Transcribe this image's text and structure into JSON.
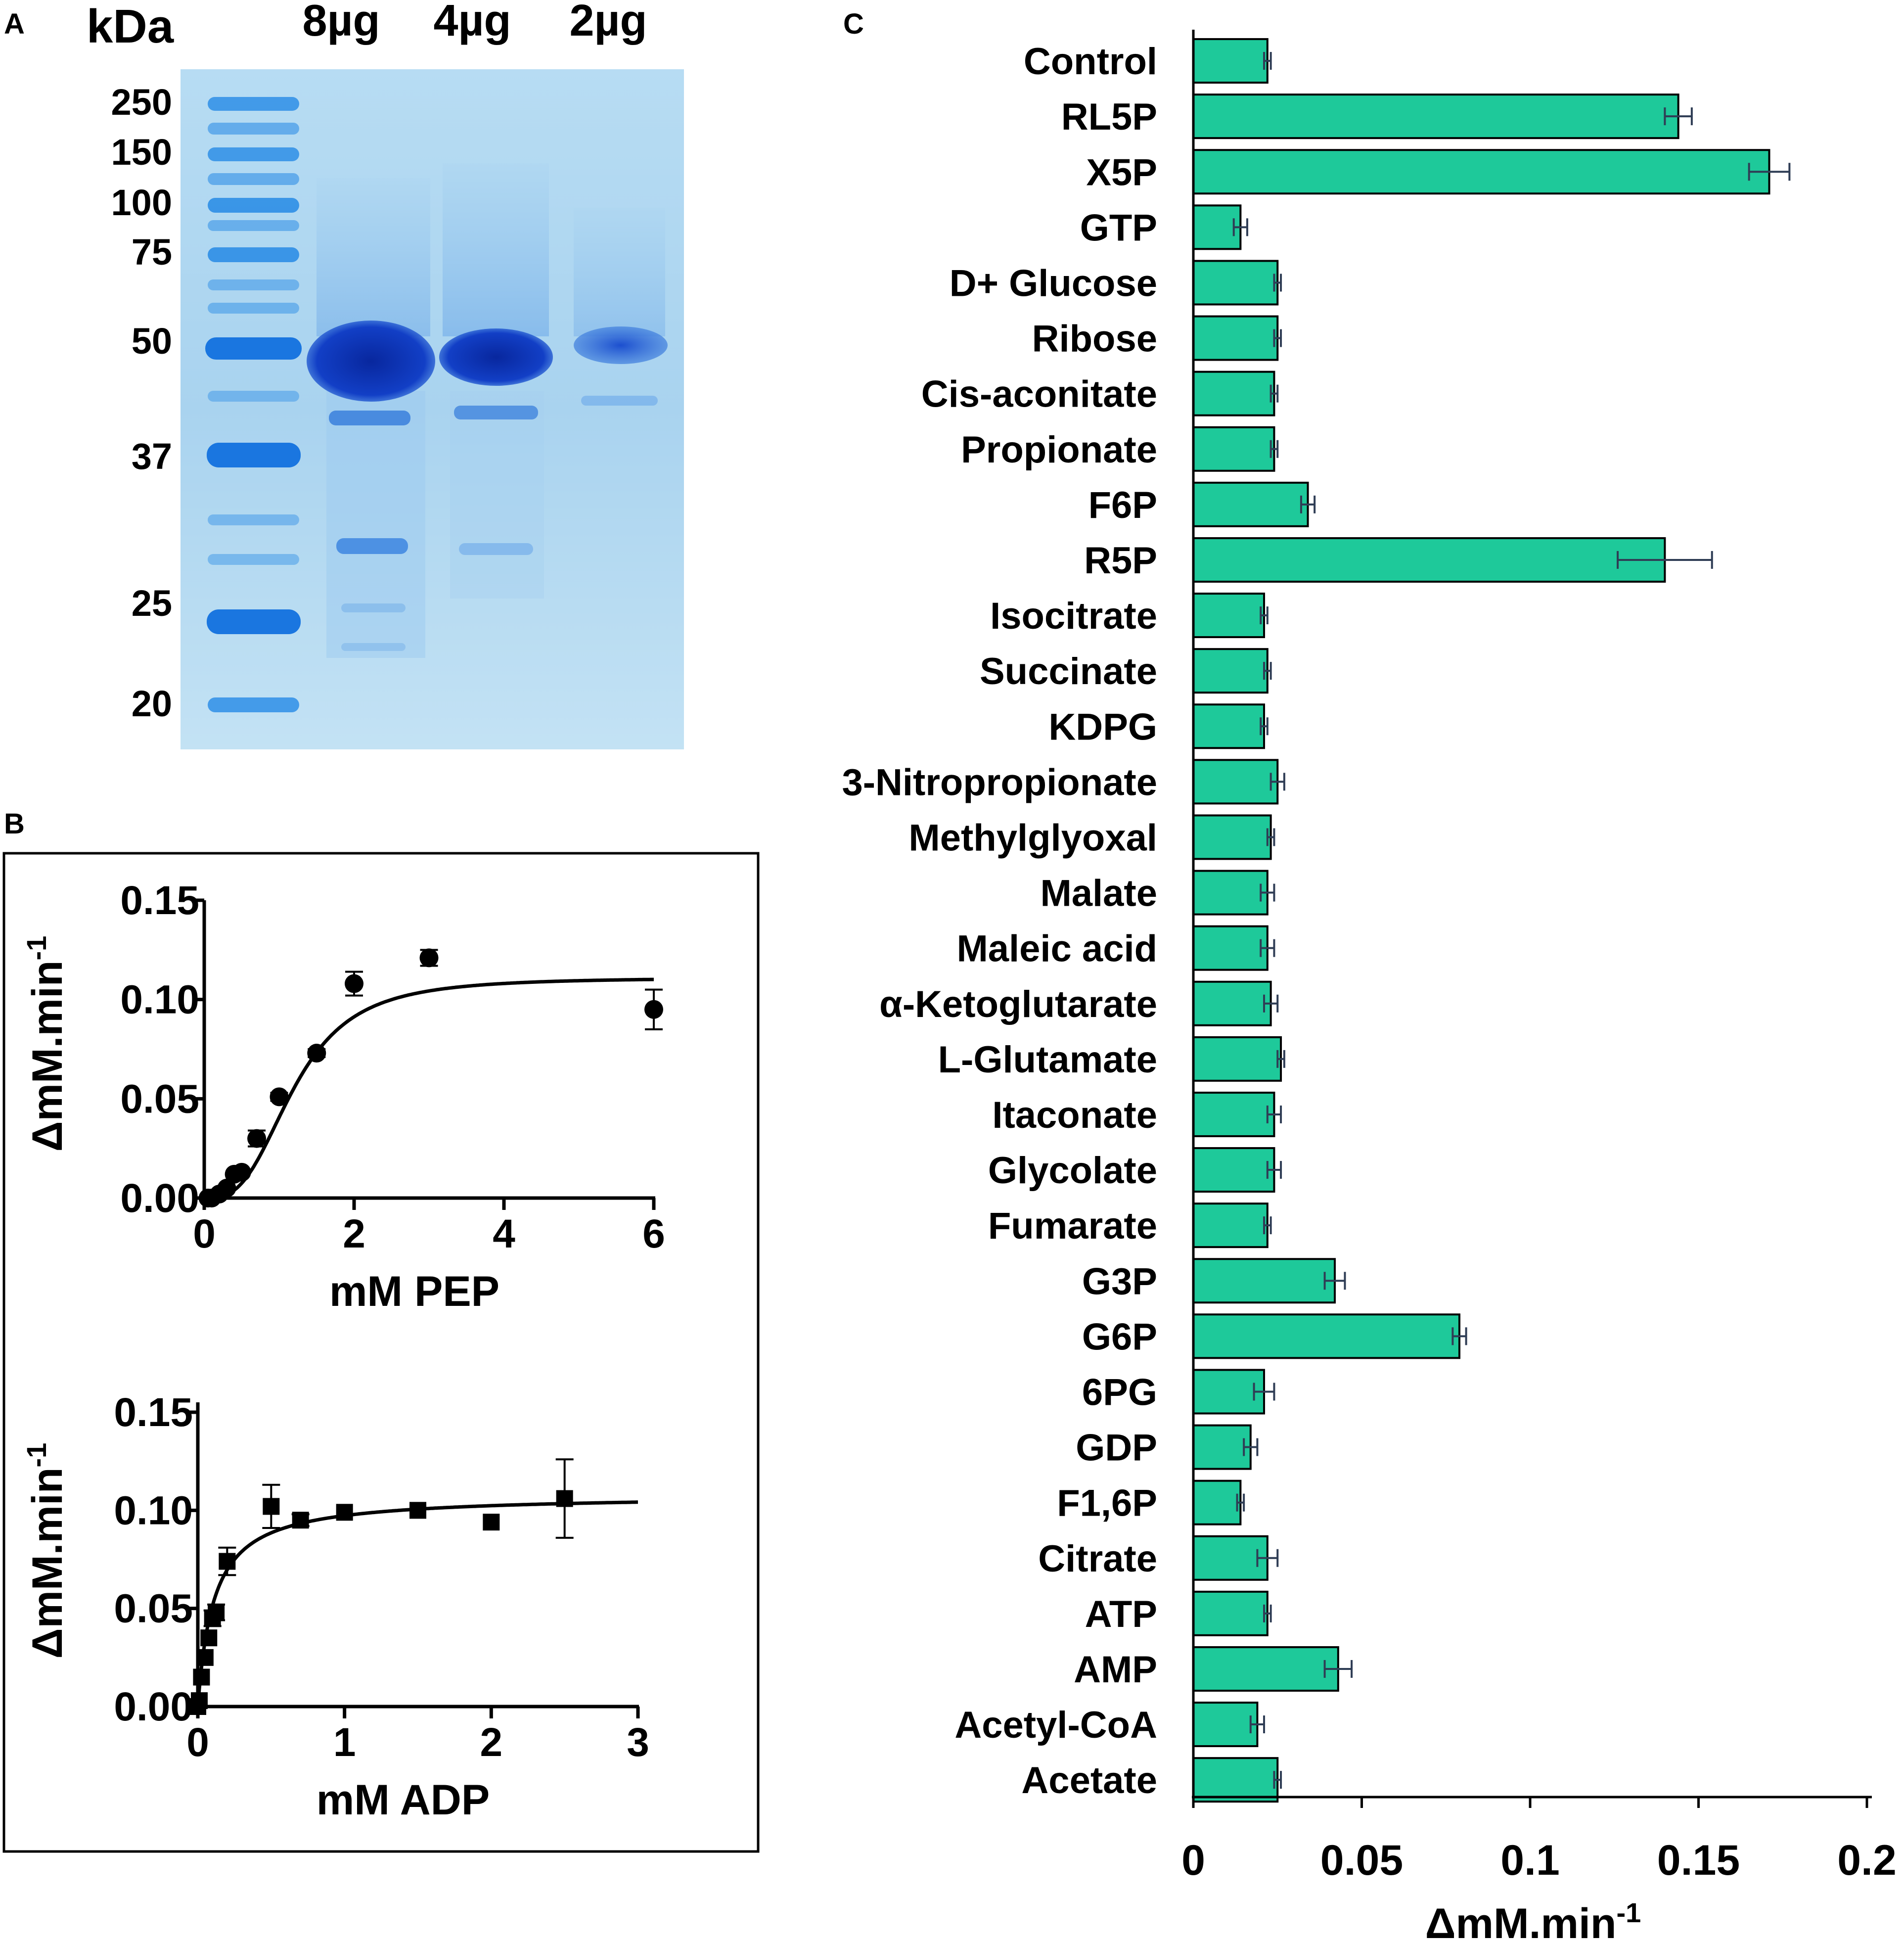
{
  "panels": {
    "a": "A",
    "b": "B",
    "c": "C"
  },
  "gel": {
    "unit_label": "kDa",
    "lanes": [
      "8µg",
      "4µg",
      "2µg"
    ],
    "markers": [
      "250",
      "150",
      "100",
      "75",
      "50",
      "37",
      "25",
      "20"
    ]
  },
  "chart_data": [
    {
      "type": "scatter",
      "title": "",
      "xlabel": "mM PEP",
      "ylabel": "ΔmM.min",
      "ylabel_superscript": "-1",
      "xlim": [
        0,
        6
      ],
      "ylim": [
        0,
        0.15
      ],
      "xticks": [
        "0",
        "2",
        "4",
        "6"
      ],
      "yticks": [
        "0.00",
        "0.05",
        "0.10",
        "0.15"
      ],
      "marker": "circle",
      "points": [
        {
          "x": 0.05,
          "y": 0.0
        },
        {
          "x": 0.1,
          "y": 0.0
        },
        {
          "x": 0.2,
          "y": 0.002
        },
        {
          "x": 0.3,
          "y": 0.005
        },
        {
          "x": 0.4,
          "y": 0.012
        },
        {
          "x": 0.5,
          "y": 0.013
        },
        {
          "x": 0.7,
          "y": 0.03
        },
        {
          "x": 1.0,
          "y": 0.051
        },
        {
          "x": 1.5,
          "y": 0.073
        },
        {
          "x": 2.0,
          "y": 0.108
        },
        {
          "x": 3.0,
          "y": 0.121
        },
        {
          "x": 6.0,
          "y": 0.095
        }
      ],
      "errors": [
        0,
        0,
        0,
        0,
        0,
        0,
        0.004,
        0.002,
        0.002,
        0.006,
        0.004,
        0.01
      ],
      "fit": {
        "model": "hill",
        "vmax": 0.111,
        "k": 1.2,
        "n": 3
      }
    },
    {
      "type": "scatter",
      "title": "",
      "xlabel": "mM ADP",
      "ylabel": "ΔmM.min",
      "ylabel_superscript": "-1",
      "xlim": [
        0,
        3
      ],
      "ylim": [
        0,
        0.15
      ],
      "xticks": [
        "0",
        "1",
        "2",
        "3"
      ],
      "yticks": [
        "0.00",
        "0.05",
        "0.10",
        "0.15"
      ],
      "marker": "square",
      "points": [
        {
          "x": 0.0,
          "y": 0.0
        },
        {
          "x": 0.01,
          "y": 0.003
        },
        {
          "x": 0.025,
          "y": 0.015
        },
        {
          "x": 0.05,
          "y": 0.025
        },
        {
          "x": 0.075,
          "y": 0.035
        },
        {
          "x": 0.1,
          "y": 0.045
        },
        {
          "x": 0.125,
          "y": 0.048
        },
        {
          "x": 0.2,
          "y": 0.074
        },
        {
          "x": 0.5,
          "y": 0.102
        },
        {
          "x": 0.7,
          "y": 0.095
        },
        {
          "x": 1.0,
          "y": 0.099
        },
        {
          "x": 1.5,
          "y": 0.1
        },
        {
          "x": 2.0,
          "y": 0.094
        },
        {
          "x": 2.5,
          "y": 0.106
        }
      ],
      "errors": [
        0,
        0,
        0,
        0,
        0,
        0.004,
        0.004,
        0.007,
        0.011,
        0.003,
        0,
        0,
        0,
        0.02
      ],
      "fit": {
        "model": "michaelis-menten",
        "vmax": 0.108,
        "k": 0.11
      }
    },
    {
      "type": "bar",
      "orientation": "horizontal",
      "title": "",
      "xlabel": "ΔmM.min",
      "xlabel_superscript": "-1",
      "ylabel": "",
      "xlim": [
        0,
        0.2
      ],
      "xticks": [
        "0",
        "0.05",
        "0.1",
        "0.15",
        "0.2"
      ],
      "bar_color": "#1ec99a",
      "categories": [
        "Control",
        "RL5P",
        "X5P",
        "GTP",
        "D+ Glucose",
        "Ribose",
        "Cis-aconitate",
        "Propionate",
        "F6P",
        "R5P",
        "Isocitrate",
        "Succinate",
        "KDPG",
        "3-Nitropropionate",
        "Methylglyoxal",
        "Malate",
        "Maleic acid",
        "α-Ketoglutarate",
        "L-Glutamate",
        "Itaconate",
        "Glycolate",
        "Fumarate",
        "G3P",
        "G6P",
        "6PG",
        "GDP",
        "F1,6P",
        "Citrate",
        "ATP",
        "AMP",
        "Acetyl-CoA",
        "Acetate"
      ],
      "values": [
        0.022,
        0.144,
        0.171,
        0.014,
        0.025,
        0.025,
        0.024,
        0.024,
        0.034,
        0.14,
        0.021,
        0.022,
        0.021,
        0.025,
        0.023,
        0.022,
        0.022,
        0.023,
        0.026,
        0.024,
        0.024,
        0.022,
        0.042,
        0.079,
        0.021,
        0.017,
        0.014,
        0.022,
        0.022,
        0.043,
        0.019,
        0.025
      ],
      "errors": [
        0.001,
        0.004,
        0.006,
        0.002,
        0.001,
        0.001,
        0.001,
        0.001,
        0.002,
        0.014,
        0.001,
        0.001,
        0.001,
        0.002,
        0.001,
        0.002,
        0.002,
        0.002,
        0.001,
        0.002,
        0.002,
        0.001,
        0.003,
        0.002,
        0.003,
        0.002,
        0.001,
        0.003,
        0.001,
        0.004,
        0.002,
        0.001
      ]
    }
  ]
}
